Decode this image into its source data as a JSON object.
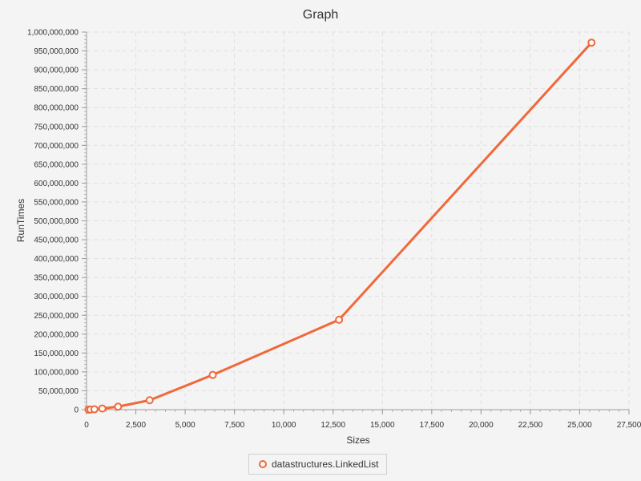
{
  "chart_data": {
    "type": "line",
    "title": "Graph",
    "xlabel": "Sizes",
    "ylabel": "RunTimes",
    "xlim": [
      0,
      27500
    ],
    "ylim": [
      0,
      1000000000
    ],
    "x_ticks": [
      "0",
      "2,500",
      "5,000",
      "7,500",
      "10,000",
      "12,500",
      "15,000",
      "17,500",
      "20,000",
      "22,500",
      "25,000",
      "27,500"
    ],
    "y_ticks": [
      "0",
      "50,000,000",
      "100,000,000",
      "150,000,000",
      "200,000,000",
      "250,000,000",
      "300,000,000",
      "350,000,000",
      "400,000,000",
      "450,000,000",
      "500,000,000",
      "550,000,000",
      "600,000,000",
      "650,000,000",
      "700,000,000",
      "750,000,000",
      "800,000,000",
      "850,000,000",
      "900,000,000",
      "950,000,000",
      "1,000,000,000"
    ],
    "grid": true,
    "legend_position": "bottom",
    "series": [
      {
        "name": "datastructures.LinkedList",
        "color": "#f0693a",
        "x": [
          100,
          200,
          400,
          800,
          1600,
          3200,
          6400,
          12800,
          25600
        ],
        "y": [
          100000,
          300000,
          1000000,
          3000000,
          8000000,
          25000000,
          92000000,
          238000000,
          972000000
        ]
      }
    ]
  }
}
